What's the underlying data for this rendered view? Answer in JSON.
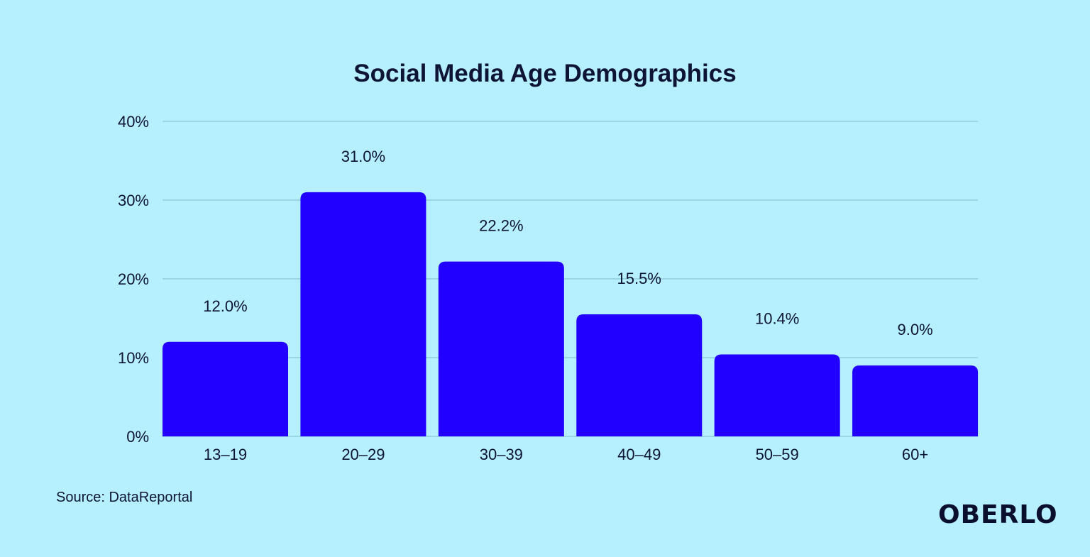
{
  "chart_data": {
    "type": "bar",
    "title": "Social Media Age Demographics",
    "categories": [
      "13–19",
      "20–29",
      "30–39",
      "40–49",
      "50–59",
      "60+"
    ],
    "values": [
      12.0,
      31.0,
      22.2,
      15.5,
      10.4,
      9.0
    ],
    "data_labels": [
      "12.0%",
      "31.0%",
      "22.2%",
      "15.5%",
      "10.4%",
      "9.0%"
    ],
    "xlabel": "",
    "ylabel": "",
    "ylim": [
      0,
      40
    ],
    "yticks": [
      0,
      10,
      20,
      30,
      40
    ],
    "ytick_labels": [
      "0%",
      "10%",
      "20%",
      "30%",
      "40%"
    ],
    "grid": true,
    "bar_color": "#2200ff",
    "background_color": "#b6effd"
  },
  "source": "Source: DataReportal",
  "logo": "OBERLO"
}
